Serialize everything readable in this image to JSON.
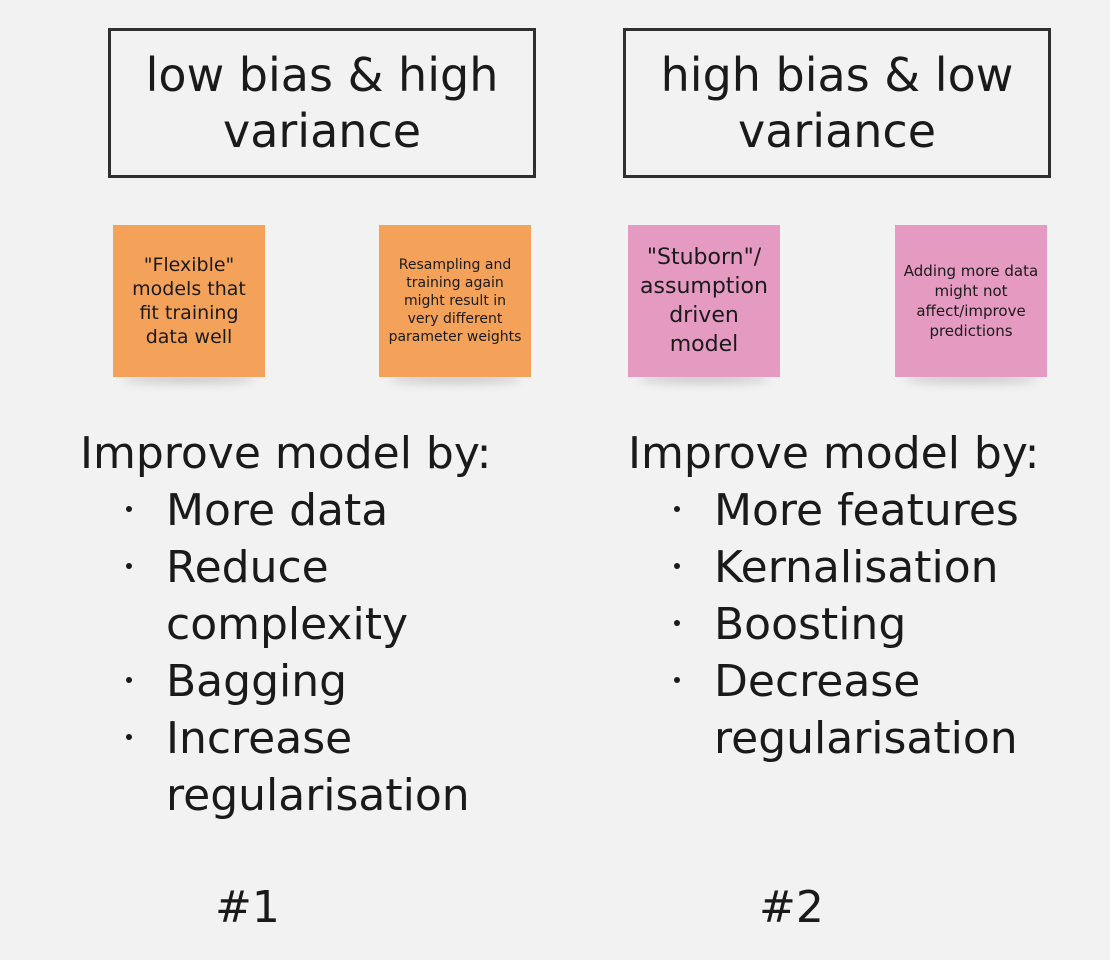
{
  "columns": [
    {
      "title": "low bias & high variance",
      "notes": [
        {
          "text": "\"Flexible\" models that fit training data well",
          "color": "#f4a259"
        },
        {
          "text": "Resampling and training again might result in very different parameter weights",
          "color": "#f4a259"
        }
      ],
      "improve_heading": "Improve model by:",
      "items": [
        "More data",
        "Reduce complexity",
        "Bagging",
        "Increase regularisation"
      ],
      "number": "#1"
    },
    {
      "title": "high bias & low variance",
      "notes": [
        {
          "text": "\"Stuborn\"/ assumption driven model",
          "color": "#e59ac2"
        },
        {
          "text": "Adding more data might not affect/improve predictions",
          "color": "#e59ac2"
        }
      ],
      "improve_heading": "Improve model by:",
      "items": [
        "More features",
        "Kernalisation",
        "Boosting",
        "Decrease regularisation"
      ],
      "number": "#2"
    }
  ]
}
